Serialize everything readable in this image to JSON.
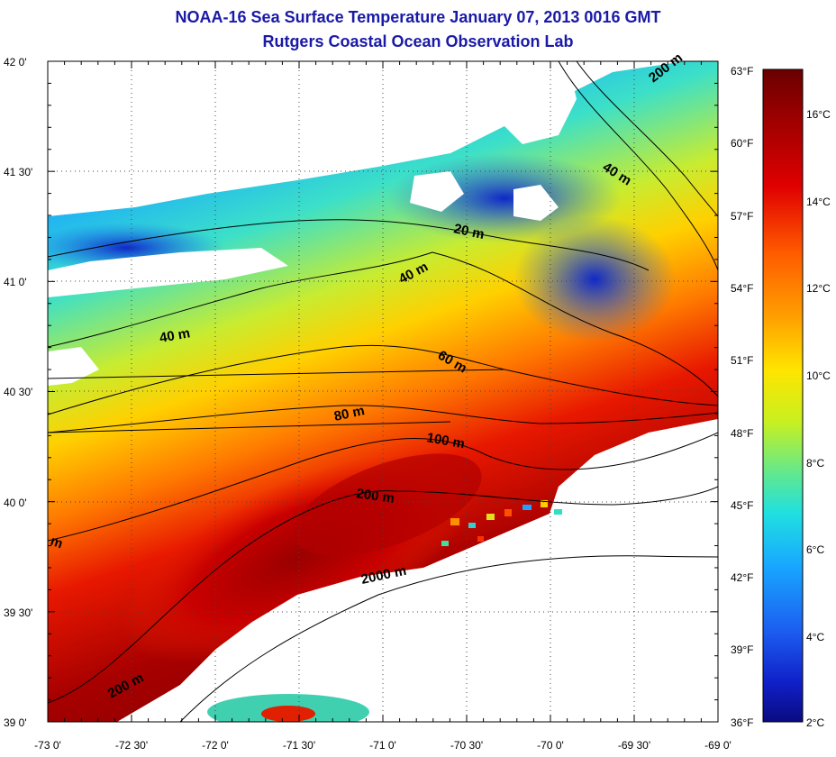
{
  "title": "NOAA-16 Sea Surface Temperature January 07, 2013 0016 GMT",
  "subtitle": "Rutgers Coastal Ocean Observation Lab",
  "x_ticks": [
    "-73 0'",
    "-72 30'",
    "-72 0'",
    "-71 30'",
    "-71 0'",
    "-70 30'",
    "-70 0'",
    "-69 30'",
    "-69 0'"
  ],
  "y_ticks": [
    "42 0'",
    "41 30'",
    "41 0'",
    "40 30'",
    "40 0'",
    "39 30'",
    "39 0'"
  ],
  "colorbar": {
    "fahrenheit_labels": [
      "63°F",
      "60°F",
      "57°F",
      "54°F",
      "51°F",
      "48°F",
      "45°F",
      "42°F",
      "39°F",
      "36°F"
    ],
    "celsius_labels": [
      "16°C",
      "14°C",
      "12°C",
      "10°C",
      "8°C",
      "6°C",
      "4°C",
      "2°C"
    ],
    "colors": [
      "#7a0000",
      "#c80000",
      "#ff3000",
      "#ff8a00",
      "#ffd800",
      "#d8f000",
      "#8ce860",
      "#30e0d0",
      "#10b8ff",
      "#2070f0",
      "#1030d8",
      "#0a0a90"
    ]
  },
  "contour_labels": {
    "c20": "20 m",
    "c40a": "40 m",
    "c40b": "40 m",
    "c40c": "40 m",
    "c60": "60 m",
    "c80": "80 m",
    "c100": "100 m",
    "c200a": "200 m",
    "c200b": "200 m",
    "c200c": "200 m",
    "c2000": "2000 m",
    "cfrag": "m"
  }
}
